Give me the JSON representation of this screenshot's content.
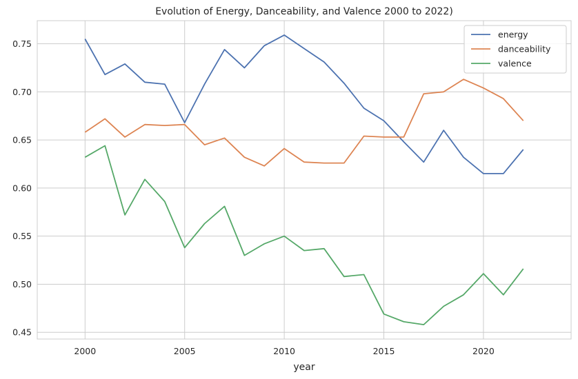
{
  "chart_data": {
    "type": "line",
    "title": "Evolution of Energy, Danceability, and Valence 2000 to 2022)",
    "xlabel": "year",
    "ylabel": "",
    "x": [
      2000,
      2001,
      2002,
      2003,
      2004,
      2005,
      2006,
      2007,
      2008,
      2009,
      2010,
      2011,
      2012,
      2013,
      2014,
      2015,
      2016,
      2017,
      2018,
      2019,
      2020,
      2021,
      2022
    ],
    "xlim": [
      1997.6,
      2024.4
    ],
    "ylim": [
      0.443,
      0.774
    ],
    "xticks": [
      2000,
      2005,
      2010,
      2015,
      2020
    ],
    "xtick_labels": [
      "2000",
      "2005",
      "2010",
      "2015",
      "2020"
    ],
    "yticks": [
      0.45,
      0.5,
      0.55,
      0.6,
      0.65,
      0.7,
      0.75
    ],
    "ytick_labels": [
      "0.45",
      "0.50",
      "0.55",
      "0.60",
      "0.65",
      "0.70",
      "0.75"
    ],
    "grid": true,
    "legend_position": "top-right",
    "series": [
      {
        "name": "energy",
        "color": "#4c72b0",
        "values": [
          0.755,
          0.718,
          0.729,
          0.71,
          0.708,
          0.668,
          0.708,
          0.744,
          0.725,
          0.748,
          0.759,
          0.745,
          0.731,
          0.709,
          0.683,
          0.67,
          0.648,
          0.627,
          0.66,
          0.632,
          0.615,
          0.615,
          0.64
        ]
      },
      {
        "name": "danceability",
        "color": "#dd8452",
        "values": [
          0.658,
          0.672,
          0.653,
          0.666,
          0.665,
          0.666,
          0.645,
          0.652,
          0.632,
          0.623,
          0.641,
          0.627,
          0.626,
          0.626,
          0.654,
          0.653,
          0.653,
          0.698,
          0.7,
          0.713,
          0.704,
          0.693,
          0.67
        ]
      },
      {
        "name": "valence",
        "color": "#55a868",
        "values": [
          0.632,
          0.644,
          0.572,
          0.609,
          0.586,
          0.538,
          0.563,
          0.581,
          0.53,
          0.542,
          0.55,
          0.535,
          0.537,
          0.508,
          0.51,
          0.469,
          0.461,
          0.458,
          0.477,
          0.489,
          0.511,
          0.489,
          0.516
        ]
      }
    ]
  }
}
